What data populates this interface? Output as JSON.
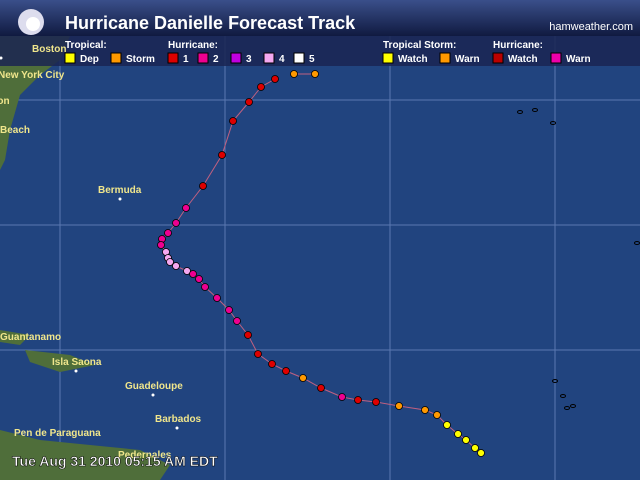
{
  "header": {
    "title": "Hurricane Danielle Forecast Track",
    "site": "hamweather.com"
  },
  "legend": {
    "groups": [
      {
        "label": "Tropical:",
        "items": [
          {
            "label": "Dep",
            "color": "#ffff00"
          },
          {
            "label": "Storm",
            "color": "#ff9900"
          }
        ]
      },
      {
        "label": "Hurricane:",
        "items": [
          {
            "label": "1",
            "color": "#dd0000"
          },
          {
            "label": "2",
            "color": "#ee0090"
          },
          {
            "label": "3",
            "color": "#c000e0"
          },
          {
            "label": "4",
            "color": "#f4a8f0"
          },
          {
            "label": "5",
            "color": "#ffffff"
          }
        ]
      },
      {
        "label": "Tropical Storm:",
        "items": [
          {
            "label": "Watch",
            "color": "#ffff00"
          },
          {
            "label": "Warn",
            "color": "#ff9900"
          }
        ]
      },
      {
        "label": "Hurricane:",
        "items": [
          {
            "label": "Watch",
            "color": "#bb0000"
          },
          {
            "label": "Warn",
            "color": "#ee00aa"
          }
        ]
      }
    ]
  },
  "places": [
    "Boston",
    "New York City",
    "ton",
    "Beach",
    "Bermuda",
    "Guantanamo",
    "Isla Saona",
    "Guadeloupe",
    "Barbados",
    "Pen de Paraguana",
    "Pedernales"
  ],
  "timestamp": "Tue Aug 31 2010 05:15 AM EDT"
}
